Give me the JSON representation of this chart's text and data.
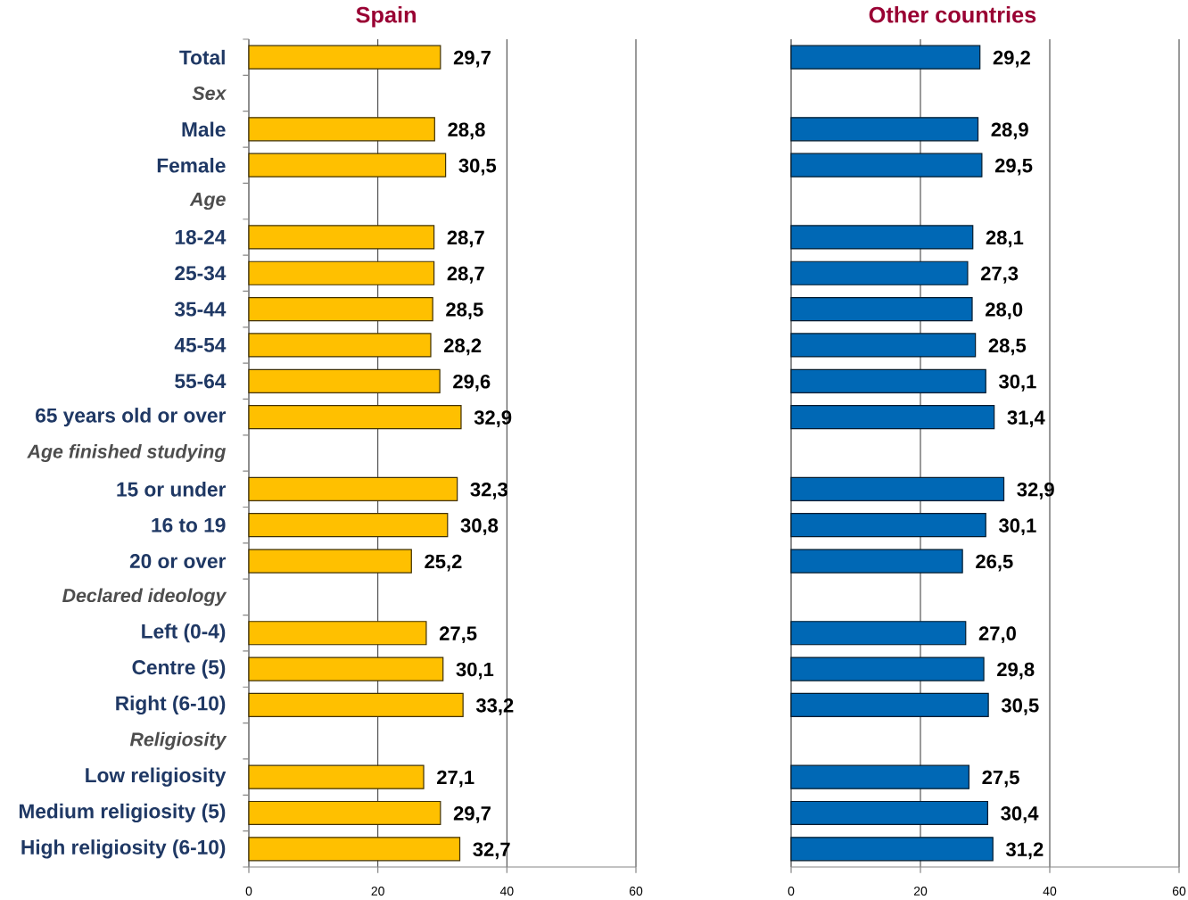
{
  "chart_data": [
    {
      "type": "bar",
      "orientation": "horizontal",
      "title": "Spain",
      "categories": [
        "Total",
        "Sex",
        "Male",
        "Female",
        "Age",
        "18-24",
        "25-34",
        "35-44",
        "45-54",
        "55-64",
        "65 years old or over",
        "Age finished studying",
        "15 or under",
        "16 to 19",
        "20 or over",
        "Declared ideology",
        "Left (0-4)",
        "Centre (5)",
        "Right (6-10)",
        "Religiosity",
        "Low religiosity",
        "Medium religiosity (5)",
        "High religiosity (6-10)"
      ],
      "values": [
        29.7,
        null,
        28.8,
        30.5,
        null,
        28.7,
        28.7,
        28.5,
        28.2,
        29.6,
        32.9,
        null,
        32.3,
        30.8,
        25.2,
        null,
        27.5,
        30.1,
        33.2,
        null,
        27.1,
        29.7,
        32.7
      ],
      "value_labels": [
        "29,7",
        null,
        "28,8",
        "30,5",
        null,
        "28,7",
        "28,7",
        "28,5",
        "28,2",
        "29,6",
        "32,9",
        null,
        "32,3",
        "30,8",
        "25,2",
        null,
        "27,5",
        "30,1",
        "33,2",
        null,
        "27,1",
        "29,7",
        "32,7"
      ],
      "color": "#ffc000",
      "xlim": [
        0,
        60
      ],
      "xticks": [
        0,
        20,
        40,
        60
      ],
      "grid": "x"
    },
    {
      "type": "bar",
      "orientation": "horizontal",
      "title": "Other countries",
      "categories": [
        null,
        null,
        null,
        null,
        null,
        null,
        null,
        null,
        null,
        null,
        null,
        null,
        null,
        null,
        null,
        null,
        null,
        null,
        null,
        null,
        null,
        null,
        null
      ],
      "values": [
        29.2,
        null,
        28.9,
        29.5,
        null,
        28.1,
        27.3,
        28.0,
        28.5,
        30.1,
        31.4,
        null,
        32.9,
        30.1,
        26.5,
        null,
        27.0,
        29.8,
        30.5,
        null,
        27.5,
        30.4,
        31.2
      ],
      "value_labels": [
        "29,2",
        null,
        "28,9",
        "29,5",
        null,
        "28,1",
        "27,3",
        "28,0",
        "28,5",
        "30,1",
        "31,4",
        null,
        "32,9",
        "30,1",
        "26,5",
        null,
        "27,0",
        "29,8",
        "30,5",
        null,
        "27,5",
        "30,4",
        "31,2"
      ],
      "color": "#0068b5",
      "xlim": [
        0,
        60
      ],
      "xticks": [
        0,
        20,
        40,
        60
      ],
      "grid": "x",
      "tick_labels": "x"
    }
  ]
}
